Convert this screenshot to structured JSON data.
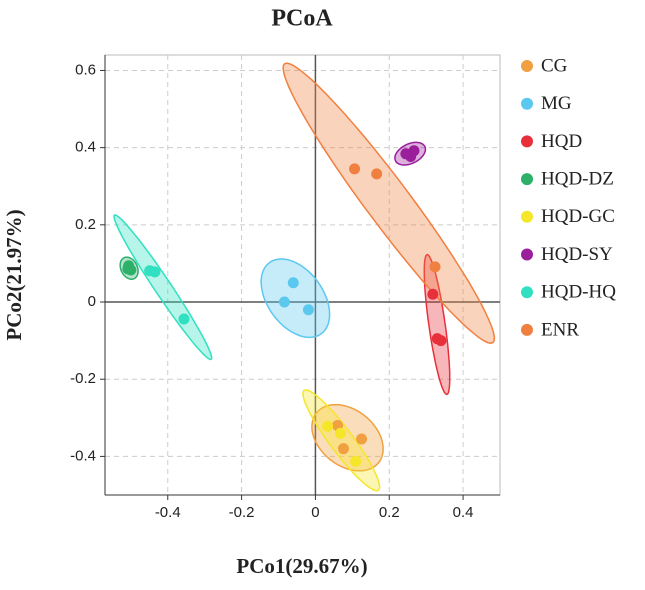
{
  "chart_data": {
    "type": "scatter",
    "title": "PCoA",
    "x_label": "PCo1(29.67%)",
    "y_label": "PCo2(21.97%)",
    "xlim": [
      -0.57,
      0.5
    ],
    "ylim": [
      -0.5,
      0.64
    ],
    "xticks": [
      -0.4,
      -0.2,
      0.0,
      0.2,
      0.4
    ],
    "yticks": [
      -0.4,
      -0.2,
      0.0,
      0.2,
      0.4,
      0.6
    ],
    "grid": true,
    "legend": "right",
    "series": [
      {
        "name": "CG",
        "color": "#f0a040",
        "x": [
          0.06,
          0.125,
          0.076
        ],
        "y": [
          -0.32,
          -0.355,
          -0.38
        ]
      },
      {
        "name": "MG",
        "color": "#5bc8f0",
        "x": [
          -0.06,
          -0.084,
          -0.019
        ],
        "y": [
          0.05,
          0.0,
          -0.02
        ]
      },
      {
        "name": "HQD",
        "color": "#e8303a",
        "x": [
          0.318,
          0.34,
          0.33
        ],
        "y": [
          0.02,
          -0.1,
          -0.095
        ]
      },
      {
        "name": "HQD-DZ",
        "color": "#2db06a",
        "x": [
          -0.506,
          -0.5,
          -0.508
        ],
        "y": [
          0.094,
          0.083,
          0.086
        ]
      },
      {
        "name": "HQD-GC",
        "color": "#f5e62a",
        "x": [
          0.033,
          0.068,
          0.109
        ],
        "y": [
          -0.322,
          -0.34,
          -0.413
        ]
      },
      {
        "name": "HQD-SY",
        "color": "#9b1f9b",
        "x": [
          0.245,
          0.267,
          0.258
        ],
        "y": [
          0.384,
          0.392,
          0.377
        ]
      },
      {
        "name": "HQD-HQ",
        "color": "#30e0c0",
        "x": [
          -0.449,
          -0.435,
          -0.356
        ],
        "y": [
          0.081,
          0.078,
          -0.044
        ]
      },
      {
        "name": "ENR",
        "color": "#f08040",
        "x": [
          0.106,
          0.166,
          0.324
        ],
        "y": [
          0.345,
          0.332,
          0.091
        ]
      }
    ]
  }
}
